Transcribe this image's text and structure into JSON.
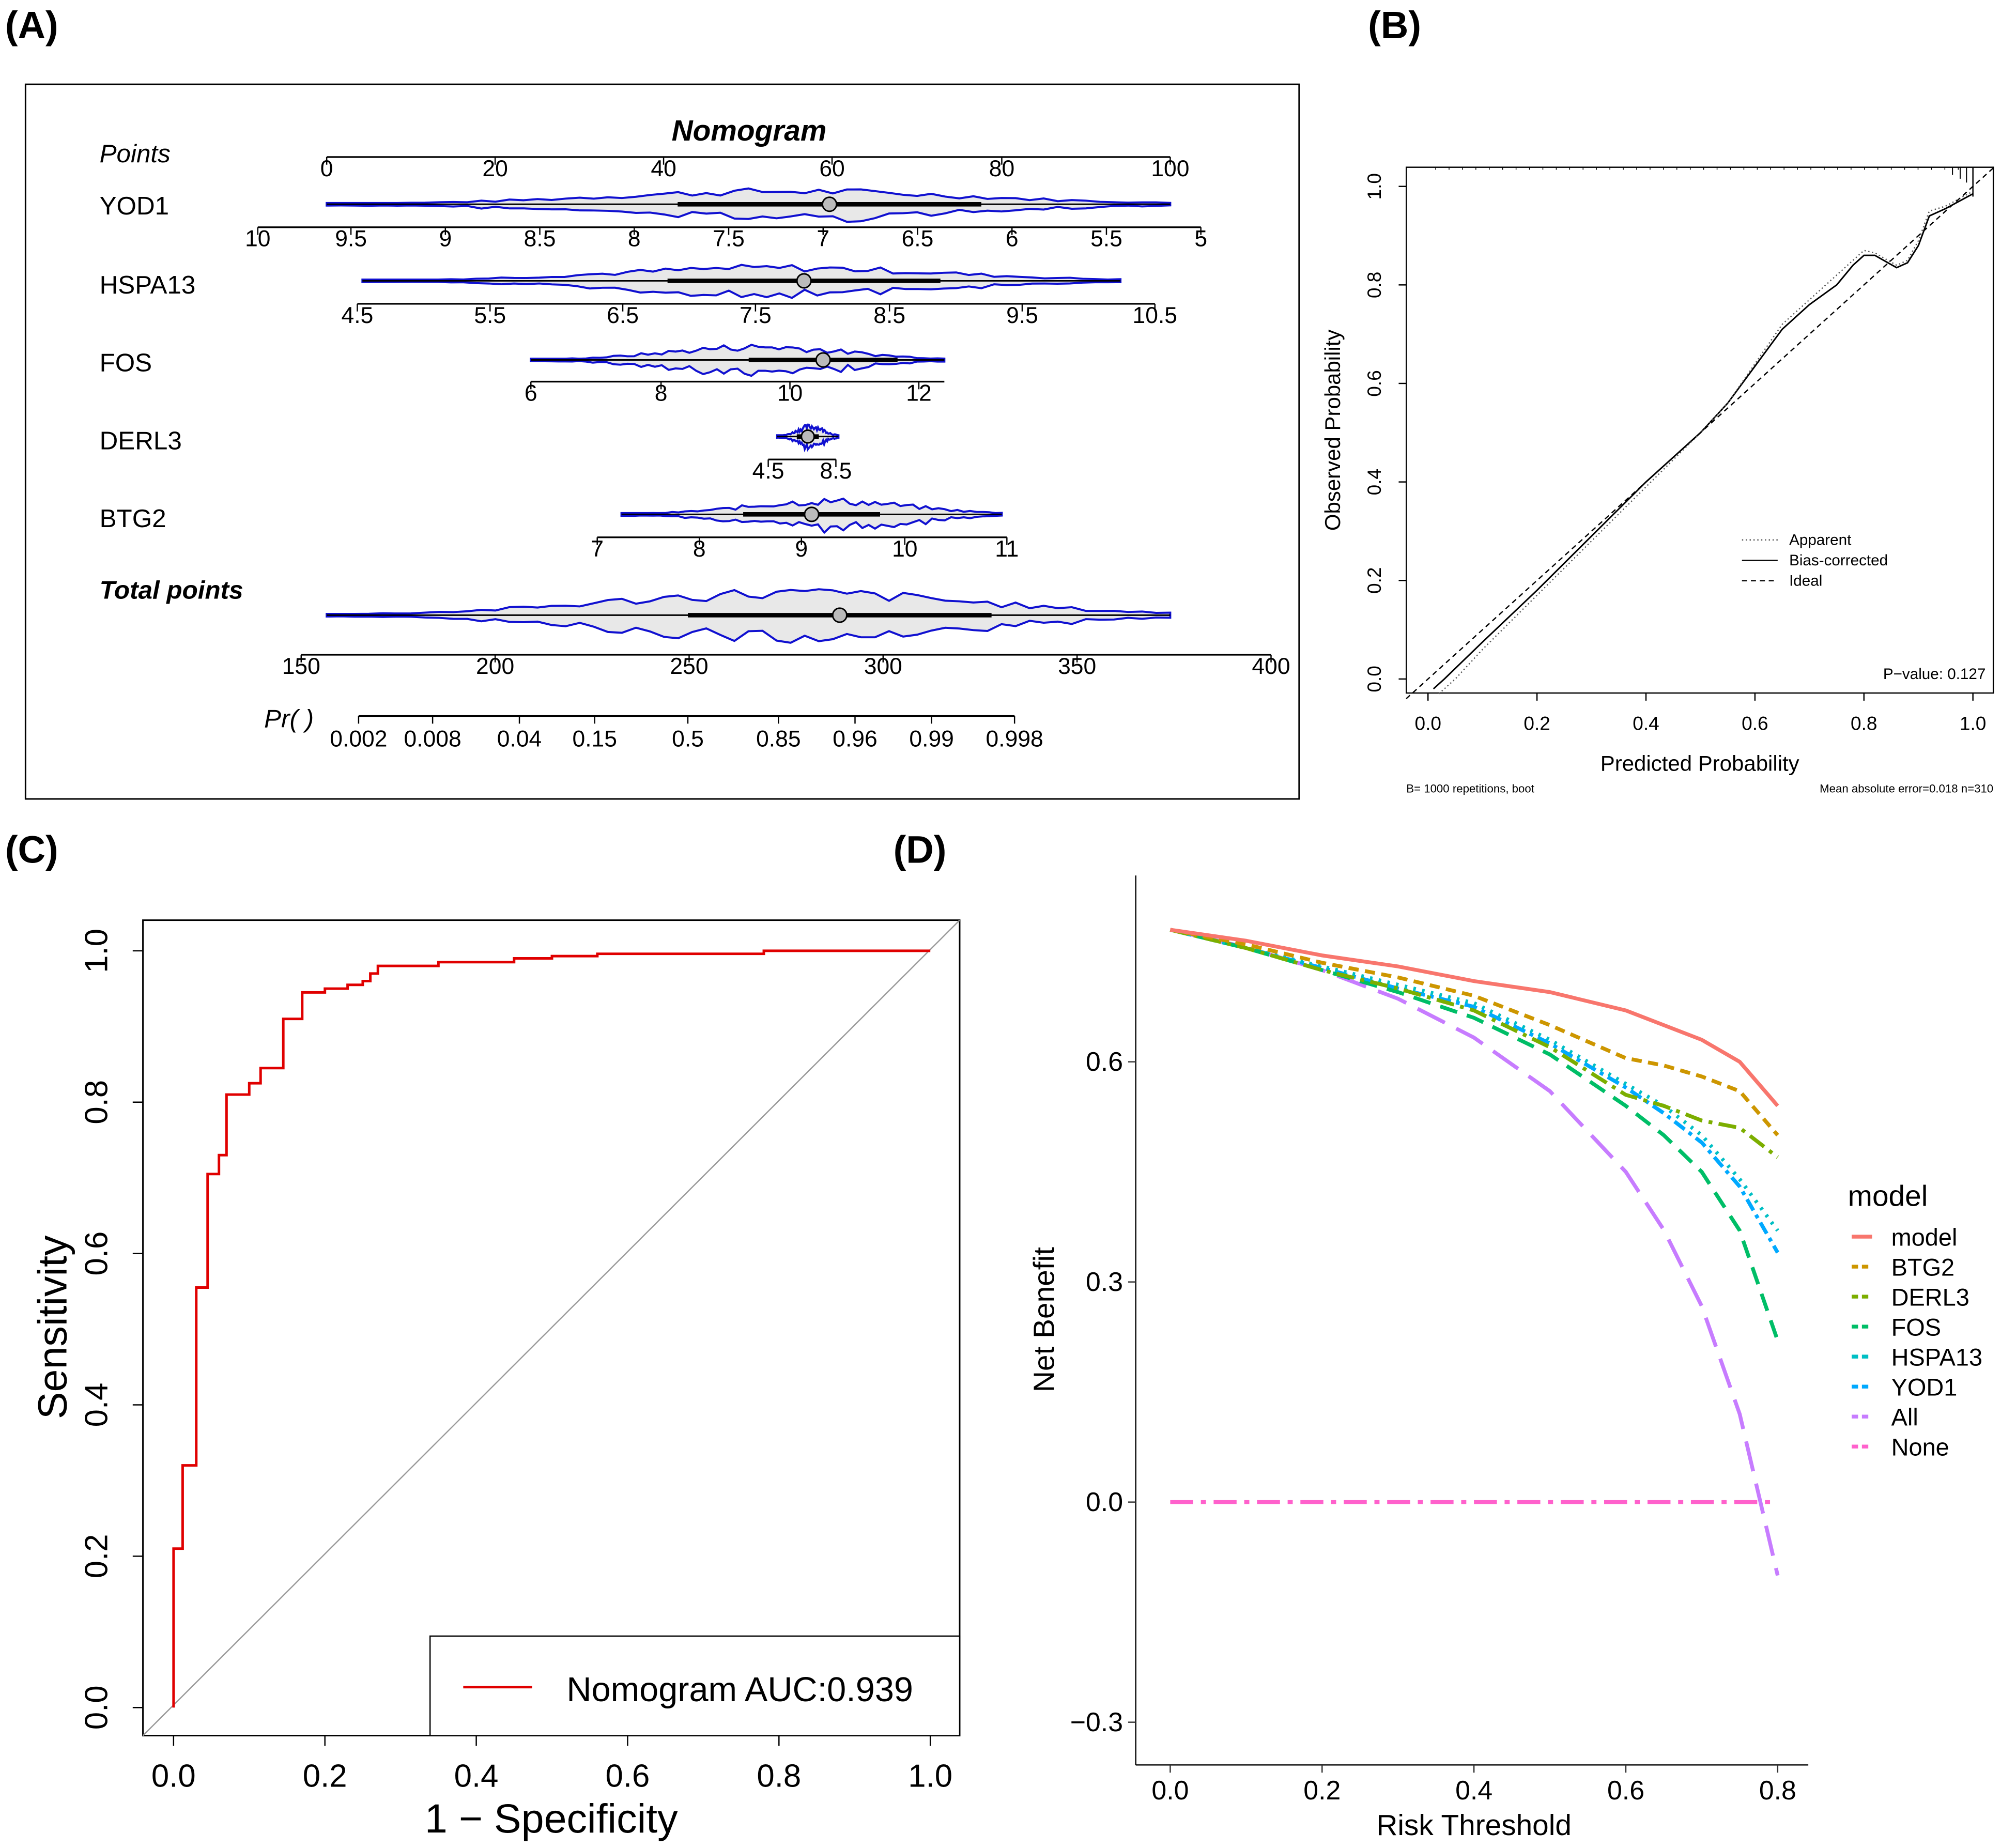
{
  "panels": {
    "a": "(A)",
    "b": "(B)",
    "c": "(C)",
    "d": "(D)"
  },
  "chart_data": [
    {
      "type": "nomogram",
      "title": "Nomogram",
      "axes": [
        {
          "name": "Points",
          "ticks": [
            "0",
            "20",
            "40",
            "60",
            "80",
            "100"
          ]
        },
        {
          "name": "YOD1",
          "ticks": [
            "10",
            "9.5",
            "9",
            "8.5",
            "8",
            "7.5",
            "7",
            "6.5",
            "6",
            "5.5",
            "5"
          ]
        },
        {
          "name": "HSPA13",
          "ticks": [
            "4.5",
            "5.5",
            "6.5",
            "7.5",
            "8.5",
            "9.5",
            "10.5"
          ]
        },
        {
          "name": "FOS",
          "ticks": [
            "6",
            "8",
            "10",
            "12"
          ]
        },
        {
          "name": "DERL3",
          "ticks": [
            "4.5",
            "8.5"
          ]
        },
        {
          "name": "BTG2",
          "ticks": [
            "7",
            "8",
            "9",
            "10",
            "11"
          ]
        },
        {
          "name": "Total points",
          "ticks": [
            "150",
            "200",
            "250",
            "300",
            "350",
            "400"
          ]
        },
        {
          "name": "Pr( )",
          "ticks": [
            "0.002",
            "0.008",
            "0.04",
            "0.15",
            "0.5",
            "0.85",
            "0.96",
            "0.99",
            "0.998"
          ]
        }
      ]
    },
    {
      "type": "line",
      "xlabel": "Predicted Probability",
      "ylabel": "Observed Probability",
      "xlim": [
        -0.04,
        1.04
      ],
      "ylim": [
        -0.03,
        1.04
      ],
      "xticks": [
        "0.0",
        "0.2",
        "0.4",
        "0.6",
        "0.8",
        "1.0"
      ],
      "yticks": [
        "0.0",
        "0.2",
        "0.4",
        "0.6",
        "0.8",
        "1.0"
      ],
      "legend": [
        "Apparent",
        "Bias-corrected",
        "Ideal"
      ],
      "pvalue": "P−value: 0.127",
      "footnote_left": "B= 1000 repetitions, boot",
      "footnote_right": "Mean absolute error=0.018 n=310",
      "series": [
        {
          "name": "Bias-corrected",
          "x": [
            0.01,
            0.03,
            0.1,
            0.2,
            0.3,
            0.4,
            0.5,
            0.55,
            0.6,
            0.65,
            0.7,
            0.75,
            0.78,
            0.8,
            0.82,
            0.86,
            0.88,
            0.9,
            0.92,
            0.95,
            1.0
          ],
          "y": [
            -0.02,
            0,
            0.075,
            0.18,
            0.29,
            0.4,
            0.5,
            0.56,
            0.635,
            0.71,
            0.76,
            0.8,
            0.84,
            0.86,
            0.86,
            0.835,
            0.845,
            0.88,
            0.94,
            0.955,
            0.985
          ]
        },
        {
          "name": "Apparent",
          "x": [
            0.02,
            0.05,
            0.1,
            0.2,
            0.3,
            0.4,
            0.5,
            0.55,
            0.6,
            0.65,
            0.7,
            0.75,
            0.78,
            0.8,
            0.82,
            0.86,
            0.88,
            0.9,
            0.92,
            0.95,
            1.0
          ],
          "y": [
            -0.03,
            0,
            0.06,
            0.17,
            0.28,
            0.39,
            0.5,
            0.56,
            0.64,
            0.72,
            0.77,
            0.82,
            0.85,
            0.87,
            0.865,
            0.84,
            0.85,
            0.89,
            0.95,
            0.96,
            0.99
          ]
        },
        {
          "name": "Ideal",
          "x": [
            -0.04,
            1.04
          ],
          "y": [
            -0.04,
            1.04
          ]
        }
      ]
    },
    {
      "type": "line",
      "xlabel": "1 − Specificity",
      "ylabel": "Sensitivity",
      "xlim": [
        0,
        1
      ],
      "ylim": [
        0,
        1
      ],
      "xticks": [
        "0.0",
        "0.2",
        "0.4",
        "0.6",
        "0.8",
        "1.0"
      ],
      "yticks": [
        "0.0",
        "0.2",
        "0.4",
        "0.6",
        "0.8",
        "1.0"
      ],
      "legend": [
        "Nomogram AUC:0.939"
      ],
      "auc": 0.939,
      "roc": {
        "x": [
          0,
          0,
          0.012,
          0.012,
          0.03,
          0.03,
          0.045,
          0.045,
          0.06,
          0.06,
          0.07,
          0.07,
          0.1,
          0.1,
          0.115,
          0.115,
          0.145,
          0.145,
          0.17,
          0.17,
          0.2,
          0.2,
          0.23,
          0.23,
          0.25,
          0.25,
          0.26,
          0.26,
          0.27,
          0.27,
          0.35,
          0.35,
          0.45,
          0.45,
          0.5,
          0.5,
          0.56,
          0.56,
          0.78,
          0.78,
          1
        ],
        "y": [
          0,
          0.21,
          0.21,
          0.32,
          0.32,
          0.555,
          0.555,
          0.705,
          0.705,
          0.73,
          0.73,
          0.81,
          0.81,
          0.825,
          0.825,
          0.845,
          0.845,
          0.91,
          0.91,
          0.945,
          0.945,
          0.95,
          0.95,
          0.955,
          0.955,
          0.96,
          0.96,
          0.97,
          0.97,
          0.98,
          0.98,
          0.985,
          0.985,
          0.99,
          0.99,
          0.993,
          0.993,
          0.996,
          0.996,
          1,
          1
        ]
      }
    },
    {
      "type": "line",
      "xlabel": "Risk Threshold",
      "ylabel": "Net Benefit",
      "xlim": [
        0,
        0.8
      ],
      "ylim": [
        -0.33,
        0.8
      ],
      "xticks": [
        "0.0",
        "0.2",
        "0.4",
        "0.6",
        "0.8"
      ],
      "yticks": [
        "−0.3",
        "0.0",
        "0.3",
        "0.6"
      ],
      "legend_title": "model",
      "x": [
        0,
        0.1,
        0.2,
        0.3,
        0.4,
        0.5,
        0.6,
        0.65,
        0.7,
        0.75,
        0.8
      ],
      "series": [
        {
          "name": "model",
          "color": "#F8766D",
          "dash": "",
          "y": [
            0.78,
            0.765,
            0.745,
            0.73,
            0.71,
            0.695,
            0.67,
            0.65,
            0.63,
            0.6,
            0.54
          ]
        },
        {
          "name": "BTG2",
          "color": "#CD9600",
          "dash": "8 5",
          "y": [
            0.78,
            0.76,
            0.735,
            0.715,
            0.69,
            0.65,
            0.605,
            0.595,
            0.58,
            0.56,
            0.5
          ]
        },
        {
          "name": "DERL3",
          "color": "#7CAE00",
          "dash": "14 5 3 5",
          "y": [
            0.78,
            0.755,
            0.725,
            0.7,
            0.67,
            0.62,
            0.555,
            0.54,
            0.52,
            0.51,
            0.47
          ]
        },
        {
          "name": "FOS",
          "color": "#00BE67",
          "dash": "14 8",
          "y": [
            0.78,
            0.755,
            0.725,
            0.695,
            0.66,
            0.61,
            0.54,
            0.5,
            0.45,
            0.37,
            0.22
          ]
        },
        {
          "name": "HSPA13",
          "color": "#00BFC4",
          "dash": "2 5",
          "y": [
            0.78,
            0.755,
            0.73,
            0.705,
            0.68,
            0.63,
            0.57,
            0.54,
            0.5,
            0.44,
            0.37
          ]
        },
        {
          "name": "YOD1",
          "color": "#00A9FF",
          "dash": "3 4 10 4",
          "y": [
            0.78,
            0.755,
            0.728,
            0.7,
            0.675,
            0.625,
            0.565,
            0.53,
            0.49,
            0.43,
            0.34
          ]
        },
        {
          "name": "All",
          "color": "#C77CFF",
          "dash": "24 10",
          "y": [
            0.78,
            0.756,
            0.725,
            0.686,
            0.633,
            0.56,
            0.45,
            0.371,
            0.267,
            0.12,
            -0.1
          ]
        },
        {
          "name": "None",
          "color": "#FF61CC",
          "dash": "18 6 4 6",
          "y": [
            0,
            0,
            0,
            0,
            0,
            0,
            0,
            0,
            0,
            0,
            0
          ]
        }
      ]
    }
  ]
}
